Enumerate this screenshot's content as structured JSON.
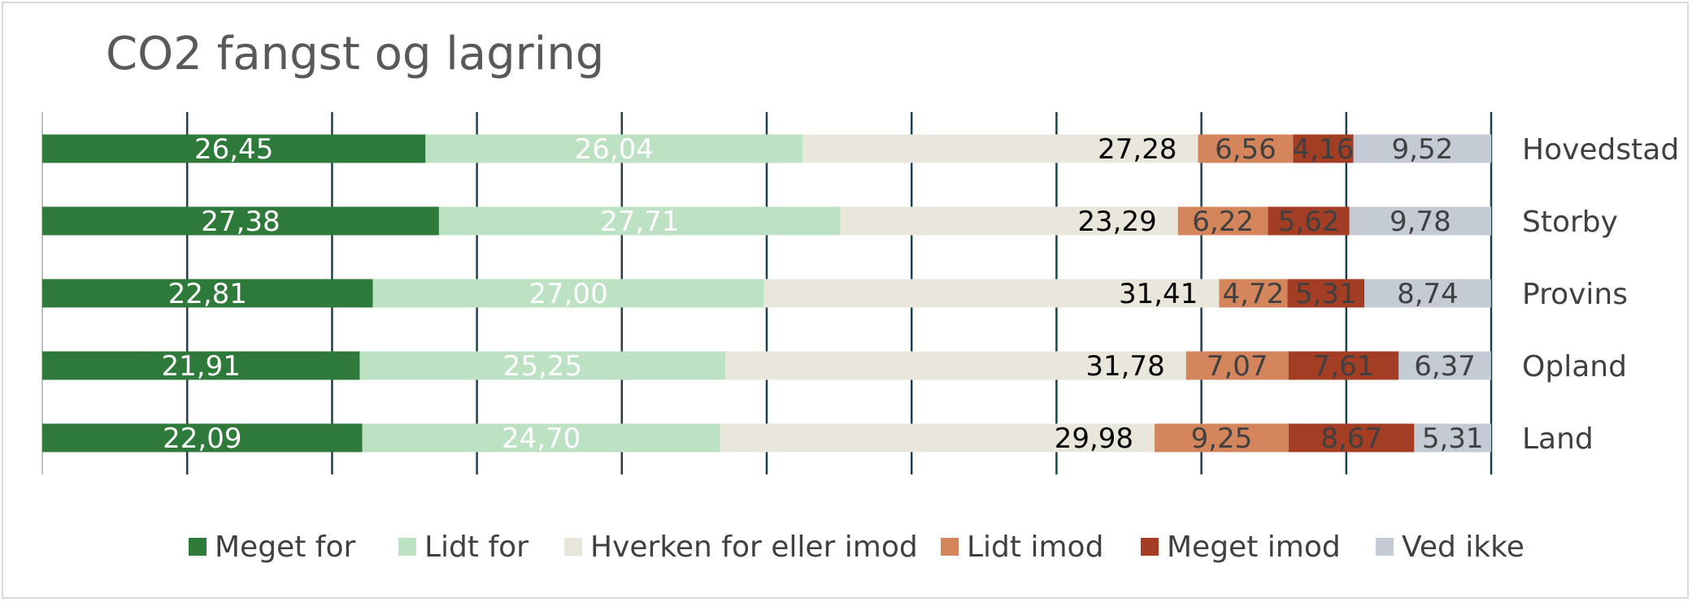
{
  "chart_data": {
    "type": "bar",
    "orientation": "horizontal",
    "stacked": true,
    "title": "CO2 fangst og lagring",
    "categories": [
      "Hovedstad",
      "Storby",
      "Provins",
      "Opland",
      "Land"
    ],
    "series": [
      {
        "name": "Meget for",
        "color": "#2e7a3b",
        "label_color": "#ffffff",
        "values": [
          26.45,
          27.38,
          22.81,
          21.91,
          22.09
        ],
        "labels": [
          "26,45",
          "27,38",
          "22,81",
          "21,91",
          "22,09"
        ]
      },
      {
        "name": "Lidt for",
        "color": "#bde2c3",
        "label_color": "#ffffff",
        "values": [
          26.04,
          27.71,
          27.0,
          25.25,
          24.7
        ],
        "labels": [
          "26,04",
          "27,71",
          "27,00",
          "25,25",
          "24,70"
        ]
      },
      {
        "name": "Hverken for eller imod",
        "color": "#e9e7dc",
        "label_color": "#000000",
        "label_align": "end",
        "values": [
          27.28,
          23.29,
          31.41,
          31.78,
          29.98
        ],
        "labels": [
          "27,28",
          "23,29",
          "31,41",
          "31,78",
          "29,98"
        ]
      },
      {
        "name": "Lidt imod",
        "color": "#d4855c",
        "label_color": "#404040",
        "values": [
          6.56,
          6.22,
          4.72,
          7.07,
          9.25
        ],
        "labels": [
          "6,56",
          "6,22",
          "4,72",
          "7,07",
          "9,25"
        ]
      },
      {
        "name": "Meget imod",
        "color": "#a33d23",
        "label_color": "#404040",
        "values": [
          4.16,
          5.62,
          5.31,
          7.61,
          8.67
        ],
        "labels": [
          "4,16",
          "5,62",
          "5,31",
          "7,61",
          "8,67"
        ]
      },
      {
        "name": "Ved ikke",
        "color": "#c4cbd4",
        "label_color": "#404040",
        "values": [
          9.52,
          9.78,
          8.74,
          6.37,
          5.31
        ],
        "labels": [
          "9,52",
          "9,78",
          "8,74",
          "6,37",
          "5,31"
        ]
      }
    ],
    "xlim": [
      0,
      100
    ],
    "grid": true,
    "grid_color": "#1f3f4f",
    "legend_position": "bottom",
    "category_label_position": "right"
  }
}
